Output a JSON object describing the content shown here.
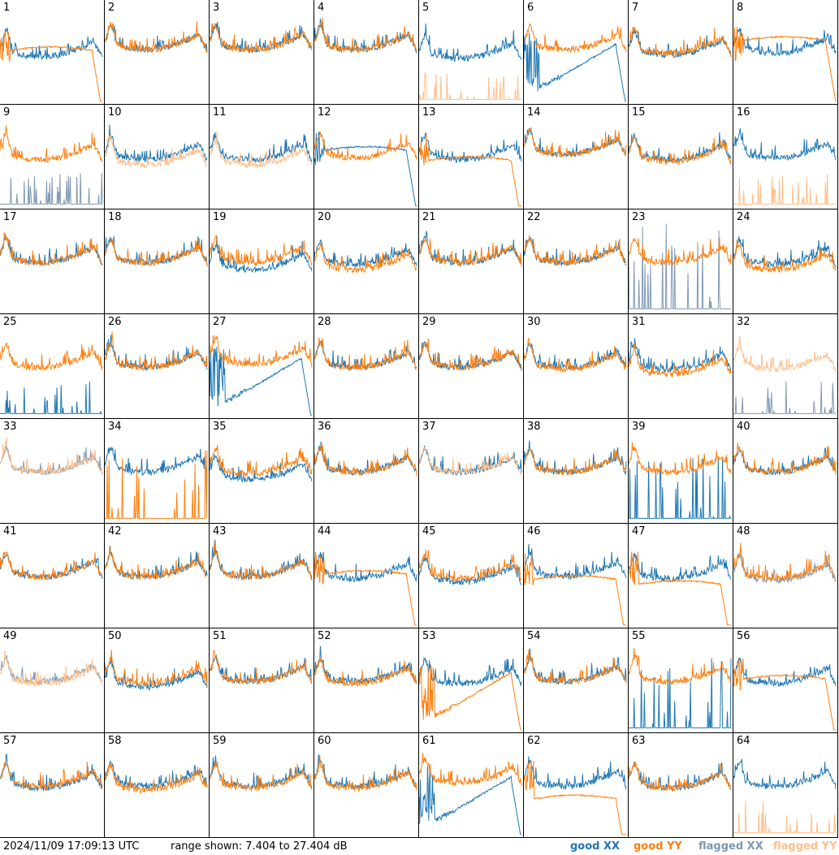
{
  "footer": {
    "timestamp": "2024/11/09 17:09:13 UTC",
    "range_text": "range shown: 7.404 to 27.404 dB"
  },
  "legend": [
    {
      "id": "good_xx",
      "label": "good XX",
      "color": "#1f77b4"
    },
    {
      "id": "good_yy",
      "label": "good YY",
      "color": "#ff7f0e"
    },
    {
      "id": "flagged_xx",
      "label": "flagged XX",
      "color": "#7f98b2"
    },
    {
      "id": "flagged_yy",
      "label": "flagged YY",
      "color": "#ffbf8b"
    }
  ],
  "chart_data": {
    "type": "line",
    "grid_cols": 8,
    "grid_rows": 8,
    "ylim": [
      7.404,
      27.404
    ],
    "y_unit": "dB",
    "panels": [
      {
        "id": "1",
        "xx": {
          "shape": "normal",
          "level": 0.5,
          "status": "good"
        },
        "yy": {
          "shape": "plateau",
          "level": 0.5,
          "status": "good"
        }
      },
      {
        "id": "2",
        "xx": {
          "shape": "normal",
          "level": 0.3,
          "status": "good"
        },
        "yy": {
          "shape": "normal",
          "level": 0.3,
          "status": "good"
        }
      },
      {
        "id": "3",
        "xx": {
          "shape": "normal",
          "level": 0.3,
          "status": "good"
        },
        "yy": {
          "shape": "normal",
          "level": 0.3,
          "status": "good"
        }
      },
      {
        "id": "4",
        "xx": {
          "shape": "normal",
          "level": 0.3,
          "status": "good"
        },
        "yy": {
          "shape": "normal",
          "level": 0.3,
          "status": "good"
        }
      },
      {
        "id": "5",
        "xx": {
          "shape": "normal",
          "level": 0.55,
          "status": "good"
        },
        "yy": {
          "shape": "spikes",
          "level": 0.05,
          "status": "flagged"
        }
      },
      {
        "id": "6",
        "xx": {
          "shape": "dip",
          "level": 0.5,
          "status": "good"
        },
        "yy": {
          "shape": "normal",
          "level": 0.3,
          "status": "good"
        }
      },
      {
        "id": "7",
        "xx": {
          "shape": "normal",
          "level": 0.45,
          "status": "good"
        },
        "yy": {
          "shape": "normal",
          "level": 0.4,
          "status": "good"
        }
      },
      {
        "id": "8",
        "xx": {
          "shape": "normal",
          "level": 0.4,
          "status": "good"
        },
        "yy": {
          "shape": "plateau",
          "level": 0.4,
          "status": "good"
        }
      },
      {
        "id": "9",
        "xx": {
          "shape": "spikes",
          "level": 0.05,
          "status": "flagged"
        },
        "yy": {
          "shape": "normal",
          "level": 0.45,
          "status": "good"
        }
      },
      {
        "id": "10",
        "xx": {
          "shape": "normal",
          "level": 0.45,
          "status": "good"
        },
        "yy": {
          "shape": "normal",
          "level": 0.6,
          "status": "flagged"
        }
      },
      {
        "id": "11",
        "xx": {
          "shape": "normal",
          "level": 0.45,
          "status": "good"
        },
        "yy": {
          "shape": "normal",
          "level": 0.6,
          "status": "flagged"
        }
      },
      {
        "id": "12",
        "xx": {
          "shape": "plateau",
          "level": 0.45,
          "status": "good"
        },
        "yy": {
          "shape": "normal",
          "level": 0.4,
          "status": "good"
        }
      },
      {
        "id": "13",
        "xx": {
          "shape": "normal",
          "level": 0.45,
          "status": "good"
        },
        "yy": {
          "shape": "plateau",
          "level": 0.55,
          "status": "good"
        }
      },
      {
        "id": "14",
        "xx": {
          "shape": "normal",
          "level": 0.3,
          "status": "good"
        },
        "yy": {
          "shape": "normal",
          "level": 0.3,
          "status": "good"
        }
      },
      {
        "id": "15",
        "xx": {
          "shape": "normal",
          "level": 0.45,
          "status": "good"
        },
        "yy": {
          "shape": "normal",
          "level": 0.5,
          "status": "good"
        }
      },
      {
        "id": "16",
        "xx": {
          "shape": "normal",
          "level": 0.4,
          "status": "good"
        },
        "yy": {
          "shape": "spikes",
          "level": 0.05,
          "status": "flagged"
        }
      },
      {
        "id": "17",
        "xx": {
          "shape": "normal",
          "level": 0.4,
          "status": "good"
        },
        "yy": {
          "shape": "normal",
          "level": 0.4,
          "status": "good"
        }
      },
      {
        "id": "18",
        "xx": {
          "shape": "normal",
          "level": 0.4,
          "status": "good"
        },
        "yy": {
          "shape": "normal",
          "level": 0.4,
          "status": "good"
        }
      },
      {
        "id": "19",
        "xx": {
          "shape": "normal",
          "level": 0.6,
          "status": "good"
        },
        "yy": {
          "shape": "normal",
          "level": 0.4,
          "status": "good"
        }
      },
      {
        "id": "20",
        "xx": {
          "shape": "normal",
          "level": 0.45,
          "status": "good"
        },
        "yy": {
          "shape": "normal",
          "level": 0.6,
          "status": "good"
        }
      },
      {
        "id": "21",
        "xx": {
          "shape": "normal",
          "level": 0.4,
          "status": "good"
        },
        "yy": {
          "shape": "normal",
          "level": 0.4,
          "status": "good"
        }
      },
      {
        "id": "22",
        "xx": {
          "shape": "normal",
          "level": 0.4,
          "status": "good"
        },
        "yy": {
          "shape": "normal",
          "level": 0.4,
          "status": "good"
        }
      },
      {
        "id": "23",
        "xx": {
          "shape": "spikes",
          "level": 0.4,
          "status": "flagged"
        },
        "yy": {
          "shape": "normal",
          "level": 0.4,
          "status": "good"
        }
      },
      {
        "id": "24",
        "xx": {
          "shape": "normal",
          "level": 0.45,
          "status": "good"
        },
        "yy": {
          "shape": "normal",
          "level": 0.6,
          "status": "good"
        }
      },
      {
        "id": "25",
        "xx": {
          "shape": "spikes",
          "level": 0.05,
          "status": "good"
        },
        "yy": {
          "shape": "normal",
          "level": 0.4,
          "status": "good"
        }
      },
      {
        "id": "26",
        "xx": {
          "shape": "normal",
          "level": 0.4,
          "status": "good"
        },
        "yy": {
          "shape": "normal",
          "level": 0.4,
          "status": "good"
        }
      },
      {
        "id": "27",
        "xx": {
          "shape": "dip",
          "level": 0.5,
          "status": "good"
        },
        "yy": {
          "shape": "normal",
          "level": 0.3,
          "status": "good"
        }
      },
      {
        "id": "28",
        "xx": {
          "shape": "normal",
          "level": 0.4,
          "status": "good"
        },
        "yy": {
          "shape": "normal",
          "level": 0.4,
          "status": "good"
        }
      },
      {
        "id": "29",
        "xx": {
          "shape": "normal",
          "level": 0.4,
          "status": "good"
        },
        "yy": {
          "shape": "normal",
          "level": 0.4,
          "status": "good"
        }
      },
      {
        "id": "30",
        "xx": {
          "shape": "normal",
          "level": 0.4,
          "status": "good"
        },
        "yy": {
          "shape": "normal",
          "level": 0.45,
          "status": "good"
        }
      },
      {
        "id": "31",
        "xx": {
          "shape": "normal",
          "level": 0.45,
          "status": "good"
        },
        "yy": {
          "shape": "normal",
          "level": 0.6,
          "status": "good"
        }
      },
      {
        "id": "32",
        "xx": {
          "shape": "spikes",
          "level": 0.05,
          "status": "flagged"
        },
        "yy": {
          "shape": "normal",
          "level": 0.45,
          "status": "flagged"
        }
      },
      {
        "id": "33",
        "xx": {
          "shape": "normal",
          "level": 0.4,
          "status": "flagged"
        },
        "yy": {
          "shape": "normal",
          "level": 0.4,
          "status": "flagged"
        }
      },
      {
        "id": "34",
        "xx": {
          "shape": "normal",
          "level": 0.4,
          "status": "good"
        },
        "yy": {
          "shape": "spikes",
          "level": 0.3,
          "status": "good"
        }
      },
      {
        "id": "35",
        "xx": {
          "shape": "normal",
          "level": 0.6,
          "status": "good"
        },
        "yy": {
          "shape": "normal",
          "level": 0.45,
          "status": "good"
        }
      },
      {
        "id": "36",
        "xx": {
          "shape": "normal",
          "level": 0.4,
          "status": "good"
        },
        "yy": {
          "shape": "normal",
          "level": 0.4,
          "status": "good"
        }
      },
      {
        "id": "37",
        "xx": {
          "shape": "normal",
          "level": 0.4,
          "status": "good"
        },
        "yy": {
          "shape": "normal",
          "level": 0.4,
          "status": "flagged"
        }
      },
      {
        "id": "38",
        "xx": {
          "shape": "normal",
          "level": 0.4,
          "status": "good"
        },
        "yy": {
          "shape": "normal",
          "level": 0.4,
          "status": "good"
        }
      },
      {
        "id": "39",
        "xx": {
          "shape": "spikes",
          "level": 0.3,
          "status": "good"
        },
        "yy": {
          "shape": "normal",
          "level": 0.4,
          "status": "good"
        }
      },
      {
        "id": "40",
        "xx": {
          "shape": "normal",
          "level": 0.4,
          "status": "good"
        },
        "yy": {
          "shape": "normal",
          "level": 0.4,
          "status": "good"
        }
      },
      {
        "id": "41",
        "xx": {
          "shape": "normal",
          "level": 0.4,
          "status": "good"
        },
        "yy": {
          "shape": "normal",
          "level": 0.4,
          "status": "good"
        }
      },
      {
        "id": "42",
        "xx": {
          "shape": "normal",
          "level": 0.4,
          "status": "good"
        },
        "yy": {
          "shape": "normal",
          "level": 0.4,
          "status": "good"
        }
      },
      {
        "id": "43",
        "xx": {
          "shape": "normal",
          "level": 0.4,
          "status": "good"
        },
        "yy": {
          "shape": "normal",
          "level": 0.4,
          "status": "good"
        }
      },
      {
        "id": "44",
        "xx": {
          "shape": "normal",
          "level": 0.45,
          "status": "good"
        },
        "yy": {
          "shape": "plateau",
          "level": 0.5,
          "status": "good"
        }
      },
      {
        "id": "45",
        "xx": {
          "shape": "normal",
          "level": 0.55,
          "status": "good"
        },
        "yy": {
          "shape": "normal",
          "level": 0.45,
          "status": "good"
        }
      },
      {
        "id": "46",
        "xx": {
          "shape": "normal",
          "level": 0.4,
          "status": "good"
        },
        "yy": {
          "shape": "plateau",
          "level": 0.55,
          "status": "good"
        }
      },
      {
        "id": "47",
        "xx": {
          "shape": "normal",
          "level": 0.45,
          "status": "good"
        },
        "yy": {
          "shape": "plateau",
          "level": 0.6,
          "status": "good"
        }
      },
      {
        "id": "48",
        "xx": {
          "shape": "normal",
          "level": 0.5,
          "status": "flagged"
        },
        "yy": {
          "shape": "normal",
          "level": 0.45,
          "status": "good"
        }
      },
      {
        "id": "49",
        "xx": {
          "shape": "normal",
          "level": 0.4,
          "status": "flagged"
        },
        "yy": {
          "shape": "normal",
          "level": 0.45,
          "status": "flagged"
        }
      },
      {
        "id": "50",
        "xx": {
          "shape": "normal",
          "level": 0.55,
          "status": "good"
        },
        "yy": {
          "shape": "normal",
          "level": 0.45,
          "status": "good"
        }
      },
      {
        "id": "51",
        "xx": {
          "shape": "normal",
          "level": 0.4,
          "status": "good"
        },
        "yy": {
          "shape": "normal",
          "level": 0.4,
          "status": "good"
        }
      },
      {
        "id": "52",
        "xx": {
          "shape": "normal",
          "level": 0.4,
          "status": "good"
        },
        "yy": {
          "shape": "normal",
          "level": 0.45,
          "status": "good"
        }
      },
      {
        "id": "53",
        "xx": {
          "shape": "normal",
          "level": 0.45,
          "status": "good"
        },
        "yy": {
          "shape": "dip",
          "level": 0.6,
          "status": "good"
        }
      },
      {
        "id": "54",
        "xx": {
          "shape": "normal",
          "level": 0.4,
          "status": "good"
        },
        "yy": {
          "shape": "normal",
          "level": 0.4,
          "status": "good"
        }
      },
      {
        "id": "55",
        "xx": {
          "shape": "spikes",
          "level": 0.3,
          "status": "good"
        },
        "yy": {
          "shape": "normal",
          "level": 0.4,
          "status": "good"
        }
      },
      {
        "id": "56",
        "xx": {
          "shape": "normal",
          "level": 0.45,
          "status": "good"
        },
        "yy": {
          "shape": "plateau",
          "level": 0.5,
          "status": "good"
        }
      },
      {
        "id": "57",
        "xx": {
          "shape": "normal",
          "level": 0.45,
          "status": "good"
        },
        "yy": {
          "shape": "normal",
          "level": 0.4,
          "status": "good"
        }
      },
      {
        "id": "58",
        "xx": {
          "shape": "normal",
          "level": 0.4,
          "status": "good"
        },
        "yy": {
          "shape": "normal",
          "level": 0.5,
          "status": "good"
        }
      },
      {
        "id": "59",
        "xx": {
          "shape": "normal",
          "level": 0.4,
          "status": "good"
        },
        "yy": {
          "shape": "normal",
          "level": 0.45,
          "status": "good"
        }
      },
      {
        "id": "60",
        "xx": {
          "shape": "normal",
          "level": 0.4,
          "status": "good"
        },
        "yy": {
          "shape": "normal",
          "level": 0.45,
          "status": "good"
        }
      },
      {
        "id": "61",
        "xx": {
          "shape": "dip",
          "level": 0.5,
          "status": "good"
        },
        "yy": {
          "shape": "normal",
          "level": 0.3,
          "status": "good"
        }
      },
      {
        "id": "62",
        "xx": {
          "shape": "normal",
          "level": 0.4,
          "status": "good"
        },
        "yy": {
          "shape": "plateau",
          "level": 0.65,
          "status": "good"
        }
      },
      {
        "id": "63",
        "xx": {
          "shape": "normal",
          "level": 0.45,
          "status": "good"
        },
        "yy": {
          "shape": "normal",
          "level": 0.45,
          "status": "good"
        }
      },
      {
        "id": "64",
        "xx": {
          "shape": "normal",
          "level": 0.4,
          "status": "good"
        },
        "yy": {
          "shape": "spikes",
          "level": 0.05,
          "status": "flagged"
        }
      }
    ]
  }
}
